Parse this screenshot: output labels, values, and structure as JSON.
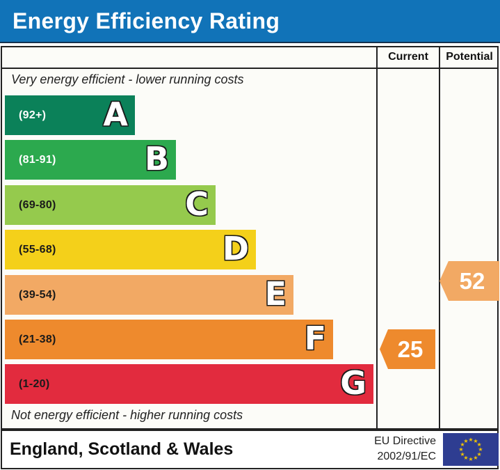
{
  "title": "Energy Efficiency Rating",
  "header": {
    "current": "Current",
    "potential": "Potential"
  },
  "notes": {
    "top": "Very energy efficient - lower running costs",
    "bottom": "Not energy efficient - higher running costs"
  },
  "bands": [
    {
      "letter": "A",
      "range": "(92+)",
      "color": "#0b8159",
      "text_color": "#ffffff"
    },
    {
      "letter": "B",
      "range": "(81-91)",
      "color": "#2ca94e",
      "text_color": "#ffffff"
    },
    {
      "letter": "C",
      "range": "(69-80)",
      "color": "#95ca4d",
      "text_color": "#1a1a1a"
    },
    {
      "letter": "D",
      "range": "(55-68)",
      "color": "#f4d01a",
      "text_color": "#1a1a1a"
    },
    {
      "letter": "E",
      "range": "(39-54)",
      "color": "#f2a964",
      "text_color": "#1a1a1a"
    },
    {
      "letter": "F",
      "range": "(21-38)",
      "color": "#ee8a2d",
      "text_color": "#1a1a1a"
    },
    {
      "letter": "G",
      "range": "(1-20)",
      "color": "#e22b3e",
      "text_color": "#1a1a1a"
    }
  ],
  "ratings": {
    "current": {
      "value": "25",
      "color": "#ee8a2d"
    },
    "potential": {
      "value": "52",
      "color": "#f2a964"
    }
  },
  "footer": {
    "region": "England, Scotland & Wales",
    "directive": {
      "line1": "EU Directive",
      "line2": "2002/91/EC"
    },
    "flag_colors": {
      "background": "#2e3d91",
      "stars": "#f2c500"
    }
  },
  "colors": {
    "title_bar": "#1173b8",
    "border": "#222222"
  },
  "chart_data": {
    "type": "bar",
    "title": "Energy Efficiency Rating",
    "categories": [
      "A",
      "B",
      "C",
      "D",
      "E",
      "F",
      "G"
    ],
    "category_ranges": [
      "92+",
      "81-91",
      "69-80",
      "55-68",
      "39-54",
      "21-38",
      "1-20"
    ],
    "bar_colors": [
      "#0b8159",
      "#2ca94e",
      "#95ca4d",
      "#f4d01a",
      "#f2a964",
      "#ee8a2d",
      "#e22b3e"
    ],
    "bar_relative_widths": [
      0.26,
      0.34,
      0.42,
      0.5,
      0.58,
      0.66,
      0.74
    ],
    "series": [
      {
        "name": "Current",
        "values": [
          25
        ],
        "band": "F"
      },
      {
        "name": "Potential",
        "values": [
          52
        ],
        "band": "E"
      }
    ],
    "annotations": [
      "Very energy efficient - lower running costs",
      "Not energy efficient - higher running costs"
    ],
    "legend_position": "none"
  }
}
